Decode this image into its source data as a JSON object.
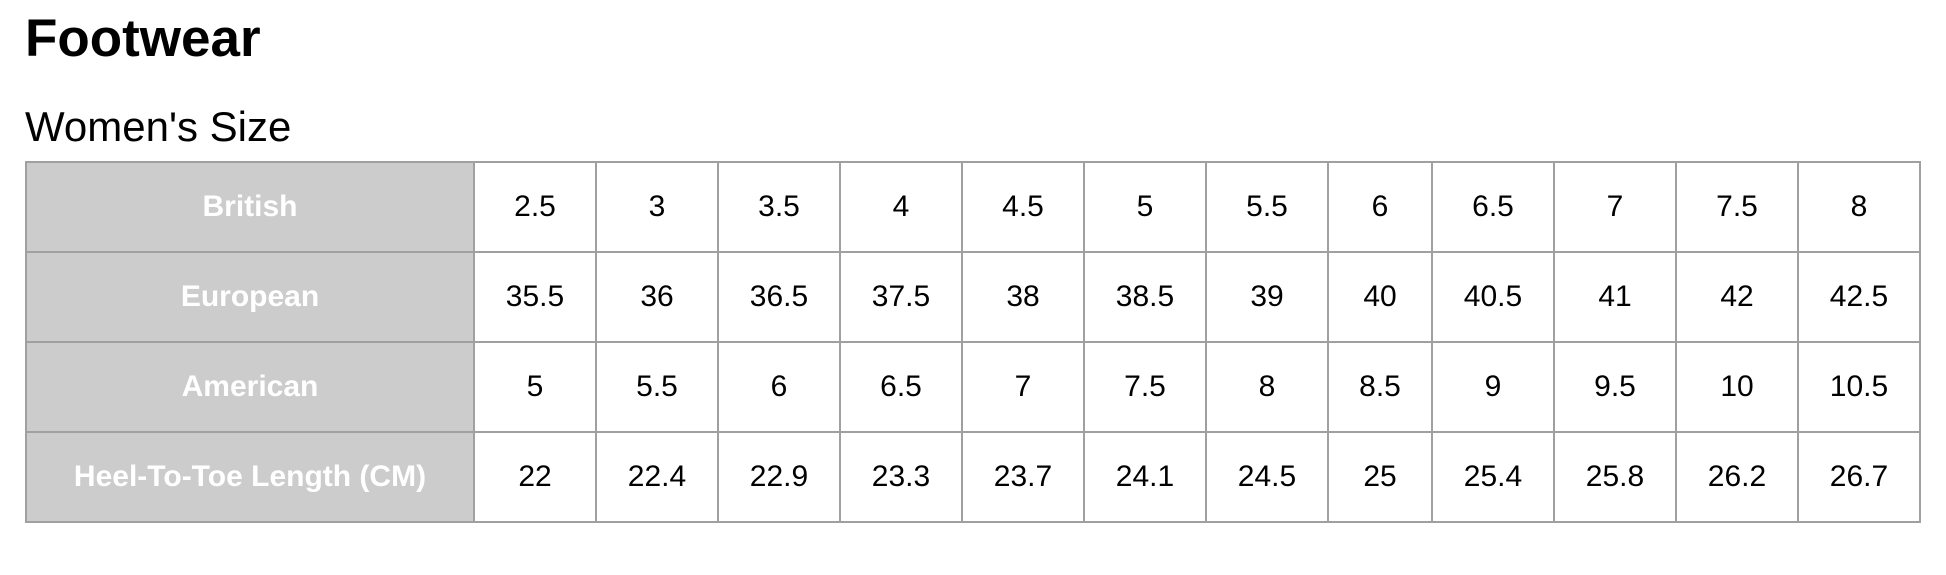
{
  "title": "Footwear",
  "subtitle": "Women's Size",
  "table": {
    "rows": [
      {
        "label": "British",
        "values": [
          "2.5",
          "3",
          "3.5",
          "4",
          "4.5",
          "5",
          "5.5",
          "6",
          "6.5",
          "7",
          "7.5",
          "8"
        ]
      },
      {
        "label": "European",
        "values": [
          "35.5",
          "36",
          "36.5",
          "37.5",
          "38",
          "38.5",
          "39",
          "40",
          "40.5",
          "41",
          "42",
          "42.5"
        ]
      },
      {
        "label": "American",
        "values": [
          "5",
          "5.5",
          "6",
          "6.5",
          "7",
          "7.5",
          "8",
          "8.5",
          "9",
          "9.5",
          "10",
          "10.5"
        ]
      },
      {
        "label": "Heel-To-Toe Length (CM)",
        "values": [
          "22",
          "22.4",
          "22.9",
          "23.3",
          "23.7",
          "24.1",
          "24.5",
          "25",
          "25.4",
          "25.8",
          "26.2",
          "26.7"
        ]
      }
    ]
  },
  "colors": {
    "header_bg": "#cccccc",
    "border": "#a0a0a0",
    "header_text": "#ffffff"
  }
}
